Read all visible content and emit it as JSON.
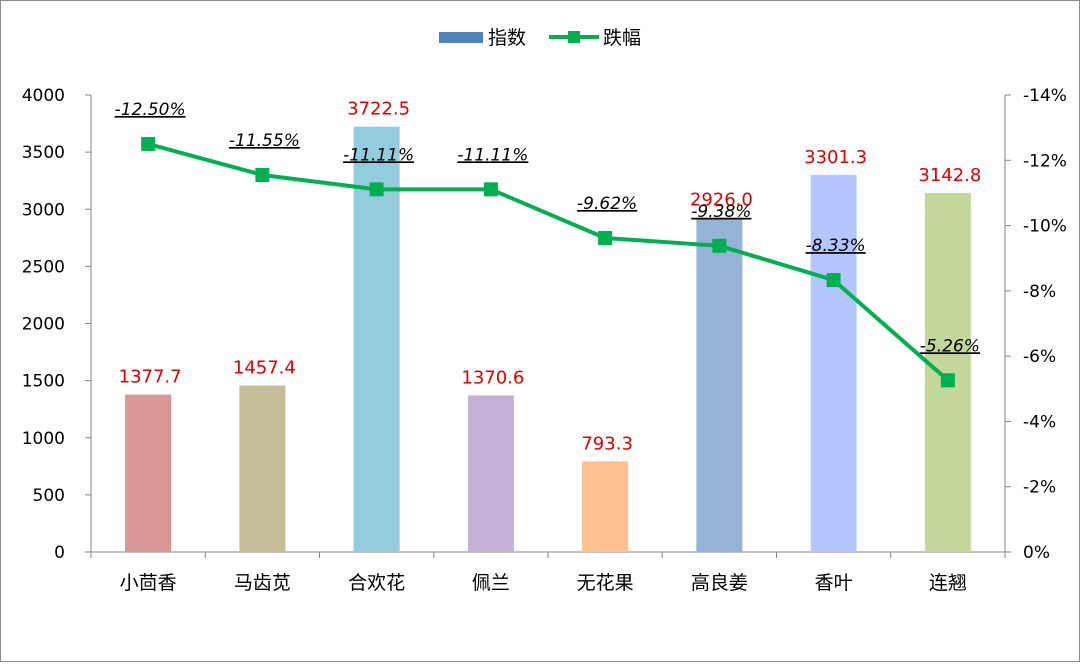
{
  "chart_data": {
    "type": "bar+line",
    "categories": [
      "小茴香",
      "马齿苋",
      "合欢花",
      "佩兰",
      "无花果",
      "高良姜",
      "香叶",
      "连翘"
    ],
    "series": [
      {
        "name": "指数",
        "type": "bar",
        "axis": "left",
        "values": [
          1377.7,
          1457.4,
          3722.5,
          1370.6,
          793.3,
          2926.0,
          3301.3,
          3142.8
        ],
        "labels": [
          "1377.7",
          "1457.4",
          "3722.5",
          "1370.6",
          "793.3",
          "2926.0",
          "3301.3",
          "3142.8"
        ],
        "colors": [
          "#d99694",
          "#c4bd97",
          "#93cddd",
          "#c3b2d6",
          "#fac090",
          "#95b3d7",
          "#b3c6ff",
          "#c3d69b"
        ]
      },
      {
        "name": "跌幅",
        "type": "line",
        "axis": "right",
        "values": [
          -12.5,
          -11.55,
          -11.11,
          -11.11,
          -9.62,
          -9.38,
          -8.33,
          -5.26
        ],
        "labels": [
          "-12.50%",
          "-11.55%",
          "-11.11%",
          "-11.11%",
          "-9.62%",
          "-9.38%",
          "-8.33%",
          "-5.26%"
        ],
        "color": "#00b050"
      }
    ],
    "left_axis": {
      "range": [
        0,
        4000
      ],
      "ticks": [
        "0",
        "500",
        "1000",
        "1500",
        "2000",
        "2500",
        "3000",
        "3500",
        "4000"
      ]
    },
    "right_axis": {
      "range": [
        0,
        -14
      ],
      "reversed": true,
      "ticks": [
        "0%",
        "-2%",
        "-4%",
        "-6%",
        "-8%",
        "-10%",
        "-12%",
        "-14%"
      ]
    },
    "legend_position": "top-center",
    "grid": false,
    "label_color": "#e00000"
  }
}
